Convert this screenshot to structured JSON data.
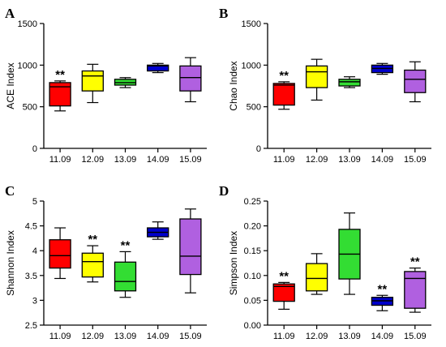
{
  "chart_data": [
    {
      "type": "boxplot",
      "panel": "A",
      "ylabel": "ACE Index",
      "ylim": [
        0,
        1500
      ],
      "yticks": [
        0,
        500,
        1000,
        1500
      ],
      "categories": [
        "11.09",
        "12.09",
        "13.09",
        "14.09",
        "15.09"
      ],
      "colors": [
        "#ff0000",
        "#ffff00",
        "#33dd33",
        "#0000cc",
        "#b060e0"
      ],
      "boxes": [
        {
          "min": 450,
          "q1": 510,
          "median": 740,
          "q3": 790,
          "max": 810
        },
        {
          "min": 550,
          "q1": 690,
          "median": 870,
          "q3": 930,
          "max": 1010
        },
        {
          "min": 730,
          "q1": 760,
          "median": 790,
          "q3": 830,
          "max": 850
        },
        {
          "min": 910,
          "q1": 930,
          "median": 990,
          "q3": 1000,
          "max": 1020
        },
        {
          "min": 560,
          "q1": 690,
          "median": 850,
          "q3": 990,
          "max": 1090
        }
      ],
      "annotations": [
        {
          "category": "11.09",
          "text": "**"
        }
      ]
    },
    {
      "type": "boxplot",
      "panel": "B",
      "ylabel": "Chao Index",
      "ylim": [
        0,
        1500
      ],
      "yticks": [
        0,
        500,
        1000,
        1500
      ],
      "categories": [
        "11.09",
        "12.09",
        "13.09",
        "14.09",
        "15.09"
      ],
      "colors": [
        "#ff0000",
        "#ffff00",
        "#33dd33",
        "#0000cc",
        "#b060e0"
      ],
      "boxes": [
        {
          "min": 470,
          "q1": 520,
          "median": 760,
          "q3": 780,
          "max": 800
        },
        {
          "min": 580,
          "q1": 730,
          "median": 920,
          "q3": 990,
          "max": 1070
        },
        {
          "min": 730,
          "q1": 750,
          "median": 800,
          "q3": 830,
          "max": 860
        },
        {
          "min": 890,
          "q1": 910,
          "median": 960,
          "q3": 1000,
          "max": 1020
        },
        {
          "min": 560,
          "q1": 670,
          "median": 830,
          "q3": 940,
          "max": 1040
        }
      ],
      "annotations": [
        {
          "category": "11.09",
          "text": "**"
        }
      ]
    },
    {
      "type": "boxplot",
      "panel": "C",
      "ylabel": "Shannon Index",
      "ylim": [
        2.5,
        5.0
      ],
      "yticks": [
        2.5,
        3.0,
        3.5,
        4.0,
        4.5,
        5.0
      ],
      "categories": [
        "11.09",
        "12.09",
        "13.09",
        "14.09",
        "15.09"
      ],
      "colors": [
        "#ff0000",
        "#ffff00",
        "#33dd33",
        "#0000cc",
        "#b060e0"
      ],
      "boxes": [
        {
          "min": 3.44,
          "q1": 3.65,
          "median": 3.9,
          "q3": 4.22,
          "max": 4.46
        },
        {
          "min": 3.37,
          "q1": 3.47,
          "median": 3.78,
          "q3": 3.95,
          "max": 4.1
        },
        {
          "min": 3.06,
          "q1": 3.19,
          "median": 3.38,
          "q3": 3.77,
          "max": 3.98
        },
        {
          "min": 4.23,
          "q1": 4.28,
          "median": 4.37,
          "q3": 4.46,
          "max": 4.58
        },
        {
          "min": 3.15,
          "q1": 3.52,
          "median": 3.89,
          "q3": 4.64,
          "max": 4.84
        }
      ],
      "annotations": [
        {
          "category": "12.09",
          "text": "**"
        },
        {
          "category": "13.09",
          "text": "**"
        }
      ]
    },
    {
      "type": "boxplot",
      "panel": "D",
      "ylabel": "Simpson Index",
      "ylim": [
        0,
        0.25
      ],
      "yticks": [
        0.0,
        0.05,
        0.1,
        0.15,
        0.2,
        0.25
      ],
      "tick_decimals": 2,
      "categories": [
        "11.09",
        "12.09",
        "13.09",
        "14.09",
        "15.09"
      ],
      "colors": [
        "#ff0000",
        "#ffff00",
        "#33dd33",
        "#0000cc",
        "#b060e0"
      ],
      "boxes": [
        {
          "min": 0.032,
          "q1": 0.048,
          "median": 0.078,
          "q3": 0.083,
          "max": 0.086
        },
        {
          "min": 0.062,
          "q1": 0.069,
          "median": 0.094,
          "q3": 0.124,
          "max": 0.144
        },
        {
          "min": 0.062,
          "q1": 0.093,
          "median": 0.143,
          "q3": 0.193,
          "max": 0.226
        },
        {
          "min": 0.029,
          "q1": 0.04,
          "median": 0.049,
          "q3": 0.056,
          "max": 0.06
        },
        {
          "min": 0.026,
          "q1": 0.034,
          "median": 0.094,
          "q3": 0.108,
          "max": 0.115
        }
      ],
      "annotations": [
        {
          "category": "11.09",
          "text": "**"
        },
        {
          "category": "14.09",
          "text": "**"
        },
        {
          "category": "15.09",
          "text": "**"
        }
      ]
    }
  ]
}
